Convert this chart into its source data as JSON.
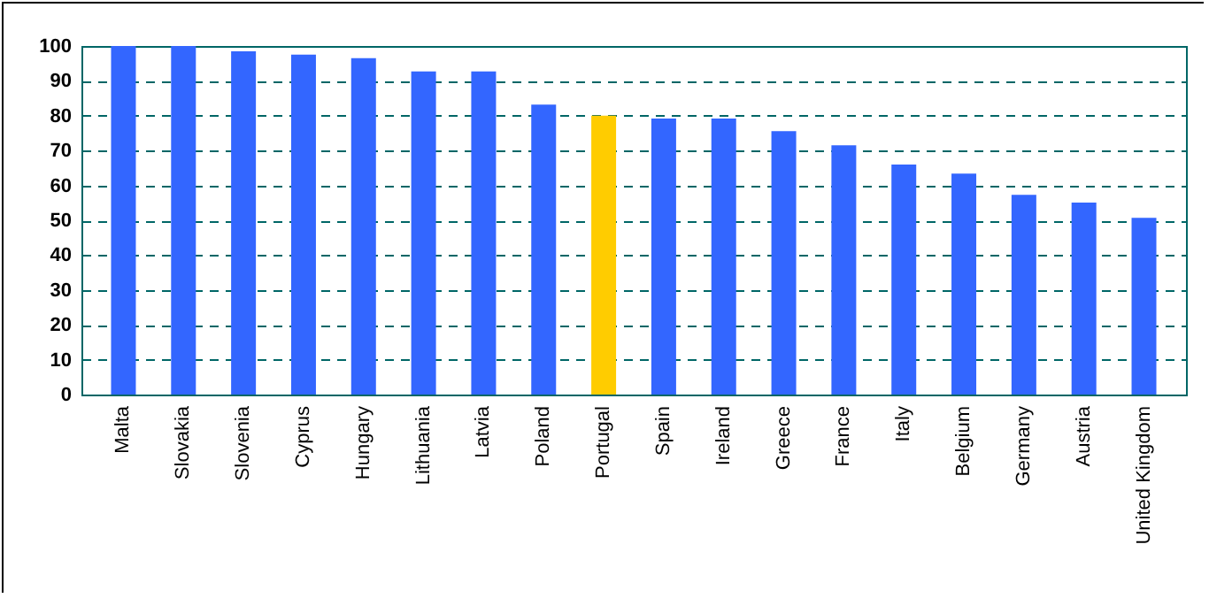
{
  "chart_data": {
    "type": "bar",
    "categories": [
      "Malta",
      "Slovakia",
      "Slovenia",
      "Cyprus",
      "Hungary",
      "Lithuania",
      "Latvia",
      "Poland",
      "Portugal",
      "Spain",
      "Ireland",
      "Greece",
      "France",
      "Italy",
      "Belgium",
      "Germany",
      "Austria",
      "United Kingdom"
    ],
    "values": [
      100,
      100,
      98.5,
      97.5,
      96.5,
      92.7,
      92.7,
      83.2,
      80,
      79.2,
      79.2,
      75.6,
      71.5,
      66,
      63.4,
      57.3,
      55.1,
      50.7
    ],
    "colors": [
      "#3366ff",
      "#3366ff",
      "#3366ff",
      "#3366ff",
      "#3366ff",
      "#3366ff",
      "#3366ff",
      "#3366ff",
      "#ffcc00",
      "#3366ff",
      "#3366ff",
      "#3366ff",
      "#3366ff",
      "#3366ff",
      "#3366ff",
      "#3366ff",
      "#3366ff",
      "#3366ff"
    ],
    "ylim": [
      0,
      100
    ],
    "yticks": [
      0,
      10,
      20,
      30,
      40,
      50,
      60,
      70,
      80,
      90,
      100
    ],
    "grid": "y"
  }
}
